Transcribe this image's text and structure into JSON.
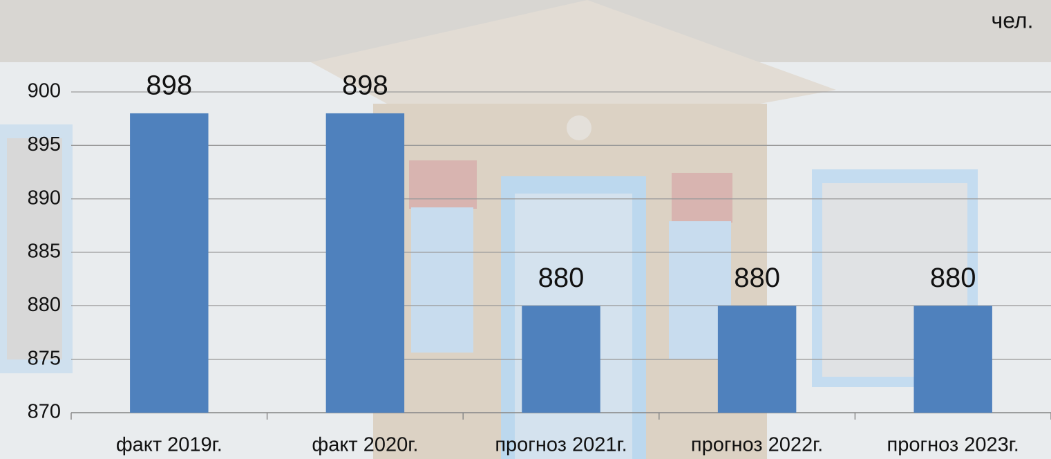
{
  "chart_data": {
    "type": "bar",
    "unit": "чел.",
    "categories": [
      "факт 2019г.",
      "факт 2020г.",
      "прогноз 2021г.",
      "прогноз 2022г.",
      "прогноз 2023г."
    ],
    "values": [
      898,
      898,
      880,
      880,
      880
    ],
    "color": "#4f81bd",
    "ylim": [
      870,
      900
    ],
    "yticks": [
      870,
      875,
      880,
      885,
      890,
      895,
      900
    ],
    "grid": true
  }
}
